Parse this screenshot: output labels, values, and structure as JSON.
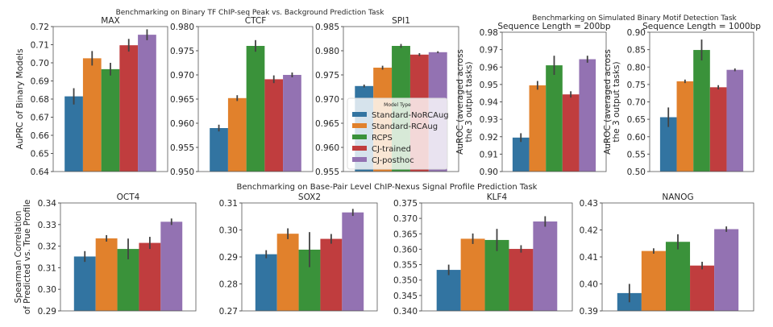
{
  "colors": [
    "#3274a1",
    "#e1812c",
    "#3a923a",
    "#c03d3e",
    "#9372b2"
  ],
  "suptitles": {
    "chipseq": "Benchmarking on Binary TF ChIP-seq Peak vs. Background Prediction Task",
    "simulated": "Benchmarking on Simulated Binary Motif Detection Task",
    "nexus": "Benchmarking on Base-Pair Level ChIP-Nexus Signal Profile Prediction Task"
  },
  "legend": {
    "title": "Model Type",
    "placement": "inside SPI1 panel, lower-right",
    "entries": [
      "Standard-NoRCAug",
      "Standard-RCAug",
      "RCPS",
      "CJ-trained",
      "CJ-posthoc"
    ]
  },
  "chart_data": [
    {
      "type": "bar",
      "title": "MAX",
      "ylabel": "AuPRC of Binary Models",
      "ylim": [
        0.64,
        0.72
      ],
      "yticks": [
        "0.64",
        "0.65",
        "0.66",
        "0.67",
        "0.68",
        "0.69",
        "0.70",
        "0.71",
        "0.72"
      ],
      "categories": [
        "Standard-NoRCAug",
        "Standard-RCAug",
        "RCPS",
        "CJ-trained",
        "CJ-posthoc"
      ],
      "values": [
        0.6815,
        0.7025,
        0.6965,
        0.7097,
        0.7155
      ],
      "errors": [
        0.0045,
        0.004,
        0.0035,
        0.0035,
        0.003
      ]
    },
    {
      "type": "bar",
      "title": "CTCF",
      "ylabel": "",
      "ylim": [
        0.95,
        0.98
      ],
      "yticks": [
        "0.950",
        "0.955",
        "0.960",
        "0.965",
        "0.970",
        "0.975",
        "0.980"
      ],
      "categories": [
        "Standard-NoRCAug",
        "Standard-RCAug",
        "RCPS",
        "CJ-trained",
        "CJ-posthoc"
      ],
      "values": [
        0.959,
        0.9652,
        0.976,
        0.9691,
        0.97
      ],
      "errors": [
        0.0007,
        0.0006,
        0.0012,
        0.0008,
        0.0005
      ]
    },
    {
      "type": "bar",
      "title": "SPI1",
      "ylabel": "",
      "ylim": [
        0.955,
        0.985
      ],
      "yticks": [
        "0.955",
        "0.960",
        "0.965",
        "0.970",
        "0.975",
        "0.980",
        "0.985"
      ],
      "categories": [
        "Standard-NoRCAug",
        "Standard-RCAug",
        "RCPS",
        "CJ-trained",
        "CJ-posthoc"
      ],
      "values": [
        0.9727,
        0.9765,
        0.981,
        0.9792,
        0.9797
      ],
      "errors": [
        0.0003,
        0.0004,
        0.0004,
        0.0003,
        0.0002
      ]
    },
    {
      "type": "bar",
      "title": "Sequence Length = 200bp",
      "ylabel": "AuROC (averaged across|the 3 output tasks)",
      "ylim": [
        0.9,
        0.98
      ],
      "yticks": [
        "0.90",
        "0.91",
        "0.92",
        "0.93",
        "0.94",
        "0.95",
        "0.96",
        "0.97",
        "0.98"
      ],
      "categories": [
        "Standard-NoRCAug",
        "Standard-RCAug",
        "RCPS",
        "CJ-trained",
        "CJ-posthoc"
      ],
      "values": [
        0.9195,
        0.9495,
        0.961,
        0.9443,
        0.9645
      ],
      "errors": [
        0.0025,
        0.0025,
        0.0055,
        0.0018,
        0.002
      ]
    },
    {
      "type": "bar",
      "title": "Sequence Length = 1000bp",
      "ylabel": "AuROC (averaged across|the 3 output tasks)",
      "ylim": [
        0.5,
        0.9
      ],
      "yticks": [
        "0.50",
        "0.55",
        "0.60",
        "0.65",
        "0.70",
        "0.75",
        "0.80",
        "0.85",
        "0.90"
      ],
      "categories": [
        "Standard-NoRCAug",
        "Standard-RCAug",
        "RCPS",
        "CJ-trained",
        "CJ-posthoc"
      ],
      "values": [
        0.656,
        0.759,
        0.849,
        0.742,
        0.792
      ],
      "errors": [
        0.028,
        0.005,
        0.03,
        0.006,
        0.004
      ]
    },
    {
      "type": "bar",
      "title": "OCT4",
      "ylabel": "Spearman Correlation|of Predicted vs. True Profile",
      "ylim": [
        0.29,
        0.34
      ],
      "yticks": [
        "0.29",
        "0.30",
        "0.31",
        "0.32",
        "0.33",
        "0.34"
      ],
      "categories": [
        "Standard-NoRCAug",
        "Standard-RCAug",
        "RCPS",
        "CJ-trained",
        "CJ-posthoc"
      ],
      "values": [
        0.3152,
        0.3236,
        0.3187,
        0.3215,
        0.3313
      ],
      "errors": [
        0.0025,
        0.0015,
        0.0048,
        0.0028,
        0.0015
      ]
    },
    {
      "type": "bar",
      "title": "SOX2",
      "ylabel": "",
      "ylim": [
        0.27,
        0.31
      ],
      "yticks": [
        "0.27",
        "0.28",
        "0.29",
        "0.30",
        "0.31"
      ],
      "categories": [
        "Standard-NoRCAug",
        "Standard-RCAug",
        "RCPS",
        "CJ-trained",
        "CJ-posthoc"
      ],
      "values": [
        0.291,
        0.2986,
        0.2927,
        0.2967,
        0.3065
      ],
      "errors": [
        0.0015,
        0.002,
        0.0065,
        0.0018,
        0.0013
      ]
    },
    {
      "type": "bar",
      "title": "KLF4",
      "ylabel": "",
      "ylim": [
        0.34,
        0.375
      ],
      "yticks": [
        "0.340",
        "0.345",
        "0.350",
        "0.355",
        "0.360",
        "0.365",
        "0.370",
        "0.375"
      ],
      "categories": [
        "Standard-NoRCAug",
        "Standard-RCAug",
        "RCPS",
        "CJ-trained",
        "CJ-posthoc"
      ],
      "values": [
        0.3533,
        0.3634,
        0.363,
        0.3601,
        0.369
      ],
      "errors": [
        0.0017,
        0.0017,
        0.0036,
        0.0012,
        0.0017
      ]
    },
    {
      "type": "bar",
      "title": "NANOG",
      "ylabel": "",
      "ylim": [
        0.39,
        0.43
      ],
      "yticks": [
        "0.39",
        "0.40",
        "0.41",
        "0.42",
        "0.43"
      ],
      "categories": [
        "Standard-NoRCAug",
        "Standard-RCAug",
        "RCPS",
        "CJ-trained",
        "CJ-posthoc"
      ],
      "values": [
        0.3966,
        0.4122,
        0.4156,
        0.4068,
        0.4203
      ],
      "errors": [
        0.0034,
        0.001,
        0.0028,
        0.0014,
        0.001
      ]
    }
  ]
}
